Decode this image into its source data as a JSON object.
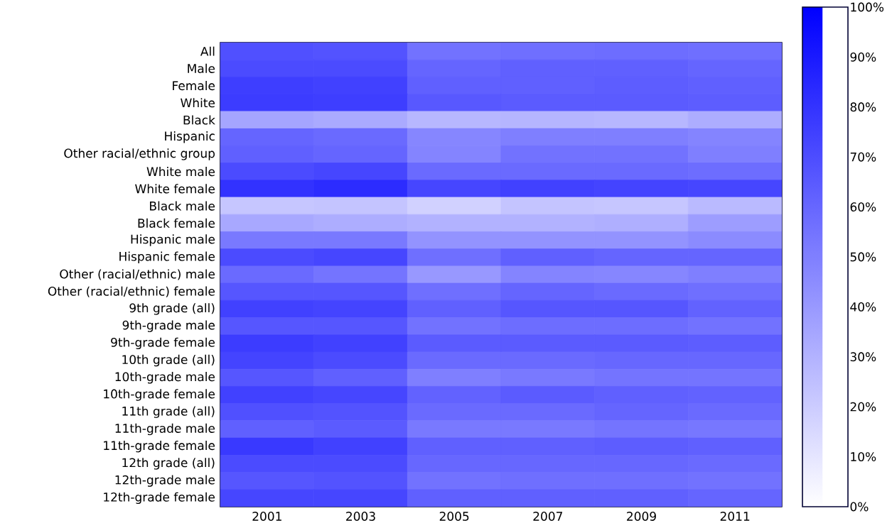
{
  "chart_data": {
    "type": "heatmap",
    "categories": [
      "2001",
      "2003",
      "2005",
      "2007",
      "2009",
      "2011"
    ],
    "y_categories": [
      "All",
      "Male",
      "Female",
      "White",
      "Black",
      "Hispanic",
      "Other racial/ethnic group",
      "White male",
      "White female",
      "Black male",
      "Black female",
      "Hispanic male",
      "Hispanic female",
      "Other (racial/ethnic) male",
      "Other (racial/ethnic) female",
      "9th grade (all)",
      "9th-grade male",
      "9th-grade female",
      "10th grade (all)",
      "10th-grade male",
      "10th-grade female",
      "11th grade (all)",
      "11th-grade male",
      "11th-grade female",
      "12th grade (all)",
      "12th-grade male",
      "12th-grade female"
    ],
    "cells": [
      [
        68,
        67,
        55,
        56,
        57,
        56
      ],
      [
        70,
        70,
        60,
        62,
        62,
        60
      ],
      [
        75,
        74,
        62,
        62,
        63,
        62
      ],
      [
        76,
        75,
        65,
        64,
        64,
        63
      ],
      [
        35,
        33,
        28,
        29,
        28,
        32
      ],
      [
        60,
        58,
        47,
        50,
        50,
        48
      ],
      [
        62,
        60,
        48,
        55,
        55,
        50
      ],
      [
        70,
        72,
        58,
        58,
        58,
        57
      ],
      [
        80,
        82,
        72,
        74,
        73,
        72
      ],
      [
        22,
        23,
        18,
        23,
        22,
        27
      ],
      [
        34,
        32,
        30,
        30,
        31,
        38
      ],
      [
        52,
        52,
        42,
        42,
        42,
        45
      ],
      [
        70,
        72,
        56,
        62,
        60,
        60
      ],
      [
        58,
        54,
        40,
        48,
        47,
        50
      ],
      [
        66,
        66,
        56,
        60,
        58,
        56
      ],
      [
        74,
        73,
        62,
        66,
        66,
        61
      ],
      [
        66,
        66,
        55,
        57,
        57,
        55
      ],
      [
        76,
        74,
        64,
        64,
        64,
        63
      ],
      [
        73,
        70,
        58,
        58,
        59,
        59
      ],
      [
        66,
        62,
        50,
        52,
        54,
        54
      ],
      [
        74,
        72,
        61,
        64,
        62,
        61
      ],
      [
        68,
        67,
        58,
        58,
        60,
        58
      ],
      [
        62,
        64,
        52,
        52,
        54,
        53
      ],
      [
        77,
        74,
        62,
        62,
        63,
        62
      ],
      [
        70,
        70,
        59,
        59,
        59,
        58
      ],
      [
        66,
        67,
        55,
        56,
        56,
        55
      ],
      [
        72,
        72,
        62,
        62,
        62,
        60
      ]
    ],
    "clim": [
      0,
      100
    ],
    "cticks": [
      {
        "value": 0,
        "label": "0%"
      },
      {
        "value": 10,
        "label": "10%"
      },
      {
        "value": 20,
        "label": "20%"
      },
      {
        "value": 30,
        "label": "30%"
      },
      {
        "value": 40,
        "label": "40%"
      },
      {
        "value": 50,
        "label": "50%"
      },
      {
        "value": 60,
        "label": "60%"
      },
      {
        "value": 70,
        "label": "70%"
      },
      {
        "value": 80,
        "label": "80%"
      },
      {
        "value": 90,
        "label": "90%"
      },
      {
        "value": 100,
        "label": "100%"
      }
    ]
  }
}
